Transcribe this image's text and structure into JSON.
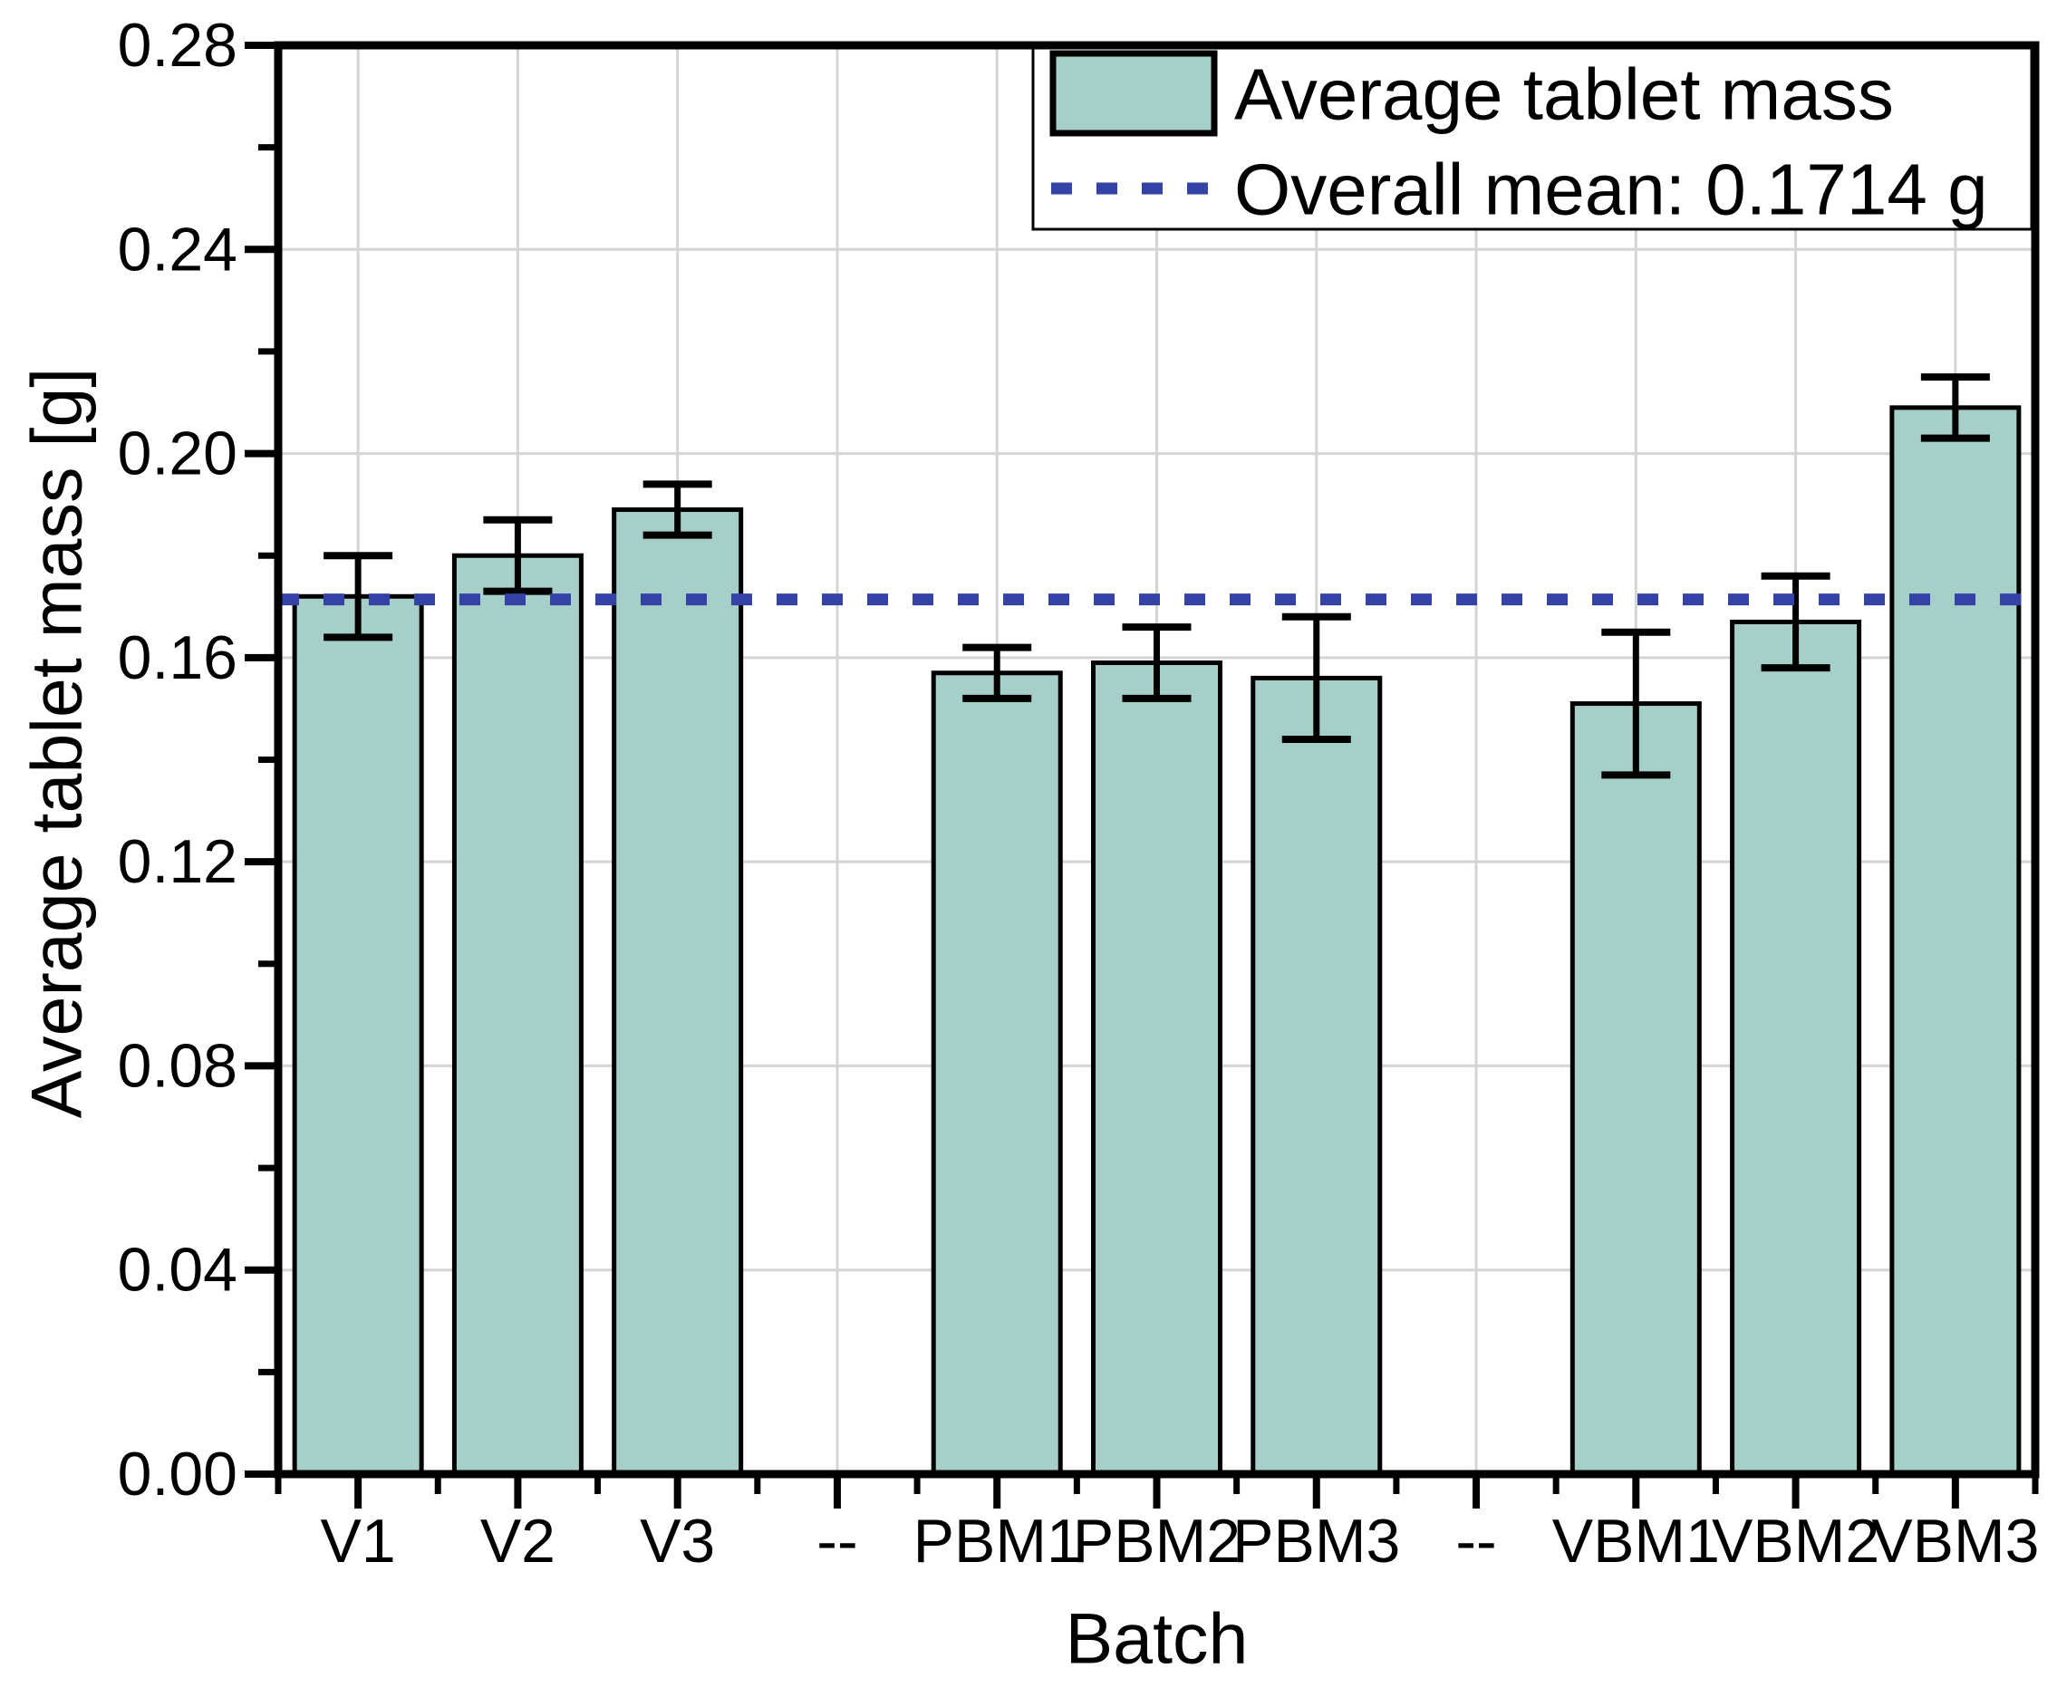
{
  "chart_data": {
    "type": "bar",
    "title": "",
    "xlabel": "Batch",
    "ylabel": "Average tablet mass [g]",
    "categories": [
      "V1",
      "V2",
      "V3",
      "--",
      "PBM1",
      "PBM2",
      "PBM3",
      "--",
      "VBM1",
      "VBM2",
      "VBM3"
    ],
    "values": [
      0.172,
      0.18,
      0.189,
      null,
      0.157,
      0.159,
      0.156,
      null,
      0.151,
      0.167,
      0.209
    ],
    "errors": [
      0.008,
      0.007,
      0.005,
      null,
      0.005,
      0.007,
      0.012,
      null,
      0.014,
      0.009,
      0.006
    ],
    "ylim": [
      0,
      0.28
    ],
    "ytick_step": 0.04,
    "ytick_labels": [
      "0.00",
      "0.04",
      "0.08",
      "0.12",
      "0.16",
      "0.20",
      "0.24",
      "0.28"
    ],
    "grid": true,
    "legend_position": "top-right",
    "mean_line": {
      "value": 0.1714,
      "label": "Overall mean: 0.1714 g"
    },
    "legend": {
      "bar_label": "Average tablet mass",
      "mean_label": "Overall mean: 0.1714 g"
    },
    "colors": {
      "bar_fill": "#a7cfc9",
      "bar_stroke": "#000000",
      "mean_line": "#3342a4",
      "grid": "#d4d4d4",
      "axis": "#000000",
      "background": "#ffffff"
    }
  }
}
